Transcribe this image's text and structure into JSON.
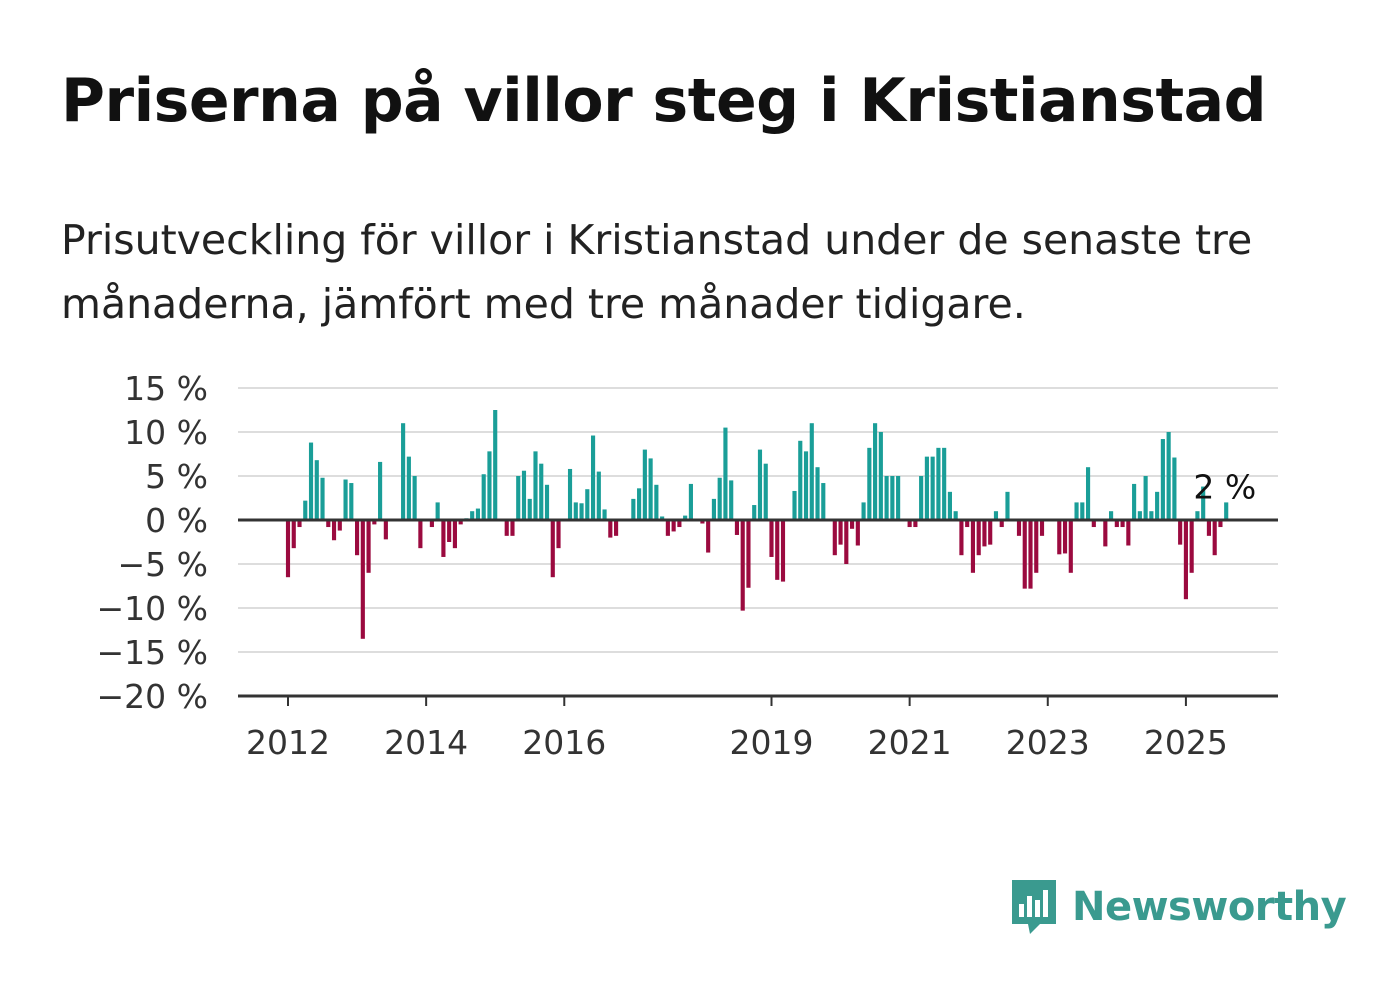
{
  "title": "Priserna på villor steg i Kristianstad",
  "subtitle": "Prisutveckling för villor i Kristianstad under de senaste tre månaderna, jämfört med tre månader tidigare.",
  "brand": "Newsworthy",
  "colors": {
    "positive": "#1a9e98",
    "negative": "#9b0a3f",
    "grid": "#dddddd",
    "axis": "#333333",
    "brand": "#3a9a8f"
  },
  "chart_data": {
    "type": "bar",
    "y_unit": "%",
    "ylim": [
      -20,
      15
    ],
    "y_ticks": [
      {
        "value": 15,
        "label": "15 %"
      },
      {
        "value": 10,
        "label": "10 %"
      },
      {
        "value": 5,
        "label": "5 %"
      },
      {
        "value": 0,
        "label": "0 %"
      },
      {
        "value": -5,
        "label": "−5 %"
      },
      {
        "value": -10,
        "label": "−10 %"
      },
      {
        "value": -15,
        "label": "−15 %"
      },
      {
        "value": -20,
        "label": "−20 %"
      }
    ],
    "x_ticks": [
      {
        "value": 2012,
        "label": "2012"
      },
      {
        "value": 2014,
        "label": "2014"
      },
      {
        "value": 2016,
        "label": "2016"
      },
      {
        "value": 2019,
        "label": "2019"
      },
      {
        "value": 2021,
        "label": "2021"
      },
      {
        "value": 2023,
        "label": "2023"
      },
      {
        "value": 2025,
        "label": "2025"
      }
    ],
    "xlim": [
      2011.3,
      2026.3
    ],
    "start_year": 2012,
    "annotation": {
      "label": "2 %",
      "value": 2
    },
    "grid": true,
    "values": [
      -6.5,
      -3.2,
      -0.8,
      2.2,
      8.8,
      6.8,
      4.8,
      -0.8,
      -2.3,
      -1.2,
      4.6,
      4.2,
      -4.0,
      -13.5,
      -6.0,
      -0.5,
      6.6,
      -2.2,
      0,
      0,
      11.0,
      7.2,
      5.0,
      -3.2,
      0,
      -0.8,
      2.0,
      -4.2,
      -2.5,
      -3.2,
      -0.5,
      0.2,
      1.0,
      1.3,
      5.2,
      7.8,
      12.5,
      0,
      -1.8,
      -1.8,
      5.0,
      5.6,
      2.4,
      7.8,
      6.4,
      4.0,
      -6.5,
      -3.2,
      0,
      5.8,
      2.0,
      1.9,
      3.5,
      9.6,
      5.5,
      1.2,
      -2.0,
      -1.8,
      0,
      0,
      2.4,
      3.6,
      8.0,
      7.0,
      4.0,
      0.4,
      -1.8,
      -1.3,
      -0.8,
      0.5,
      4.1,
      0,
      -0.4,
      -3.7,
      2.4,
      4.8,
      10.5,
      4.5,
      -1.7,
      -10.3,
      -7.7,
      1.7,
      8.0,
      6.4,
      -4.2,
      -6.8,
      -7.0,
      0,
      3.3,
      9.0,
      7.8,
      11.0,
      6.0,
      4.2,
      0,
      -4.0,
      -2.8,
      -5.0,
      -1.0,
      -2.9,
      2.0,
      8.2,
      11.0,
      10.0,
      5.0,
      5.0,
      5.0,
      0,
      -0.8,
      -0.8,
      5.0,
      7.2,
      7.2,
      8.2,
      8.2,
      3.2,
      1.0,
      -4.0,
      -0.8,
      -6.0,
      -4.0,
      -3.0,
      -2.8,
      1.0,
      -0.8,
      3.2,
      0,
      -1.8,
      -7.8,
      -7.8,
      -6.0,
      -1.8,
      0,
      0,
      -3.9,
      -3.8,
      -6.0,
      2.0,
      2.0,
      6.0,
      -0.8,
      0,
      -3.0,
      1.0,
      -0.8,
      -0.8,
      -2.9,
      4.1,
      1.0,
      5.0,
      1.0,
      3.2,
      9.2,
      10.0,
      7.1,
      -2.8,
      -9.0,
      -6.0,
      1.0,
      3.8,
      -1.8,
      -4.0,
      -0.8,
      2.0
    ]
  }
}
